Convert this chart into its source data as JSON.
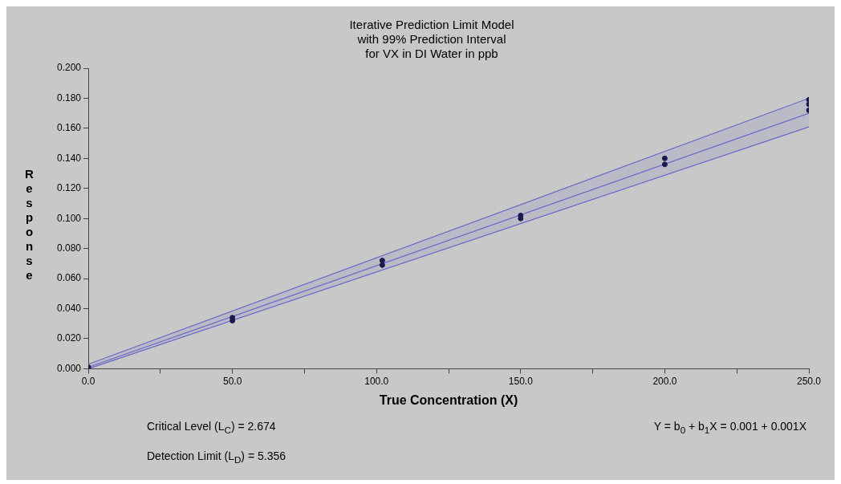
{
  "chart_data": {
    "type": "scatter",
    "title": "Iterative Prediction Limit Model\nwith 99% Prediction Interval\nfor VX in DI Water in ppb",
    "xlabel": "True Concentration (X)",
    "ylabel": "Response",
    "xlim": [
      0,
      250
    ],
    "xticks": [
      {
        "value": 0,
        "label": "0.0"
      },
      {
        "value": 25,
        "label": null
      },
      {
        "value": 50,
        "label": "50.0"
      },
      {
        "value": 75,
        "label": null
      },
      {
        "value": 100,
        "label": "100.0"
      },
      {
        "value": 125,
        "label": null
      },
      {
        "value": 150,
        "label": "150.0"
      },
      {
        "value": 175,
        "label": null
      },
      {
        "value": 200,
        "label": "200.0"
      },
      {
        "value": 225,
        "label": null
      },
      {
        "value": 250,
        "label": "250.0"
      }
    ],
    "ylim": [
      0,
      0.2
    ],
    "yticks": [
      {
        "value": 0,
        "label": "0.000"
      },
      {
        "value": 0.02,
        "label": "0.020"
      },
      {
        "value": 0.04,
        "label": "0.040"
      },
      {
        "value": 0.06,
        "label": "0.060"
      },
      {
        "value": 0.08,
        "label": "0.080"
      },
      {
        "value": 0.1,
        "label": "0.100"
      },
      {
        "value": 0.12,
        "label": "0.120"
      },
      {
        "value": 0.14,
        "label": "0.140"
      },
      {
        "value": 0.16,
        "label": "0.160"
      },
      {
        "value": 0.18,
        "label": "0.180"
      },
      {
        "value": 0.2,
        "label": "0.200"
      }
    ],
    "grid": false,
    "legend": false,
    "marker": "circle",
    "series": [
      {
        "type": "line",
        "marker": "none",
        "color": "#6666c8",
        "x": [
          0,
          250
        ],
        "values": [
          0.001,
          0.17
        ],
        "lower": [
          0.0,
          0.161
        ],
        "upper": [
          0.003,
          0.18
        ]
      },
      {
        "type": "line",
        "marker": "none",
        "color": "#6666c8",
        "x": [
          0,
          250
        ],
        "values": [
          0.003,
          0.18
        ]
      },
      {
        "type": "line",
        "marker": "none",
        "color": "#6666c8",
        "x": [
          0,
          250
        ],
        "values": [
          0.0,
          0.161
        ]
      },
      {
        "color": "#1a1a50",
        "x": [
          0,
          50,
          50,
          102,
          102,
          150,
          150,
          200,
          200,
          250,
          250,
          250
        ],
        "values": [
          0.001,
          0.032,
          0.034,
          0.069,
          0.072,
          0.1,
          0.102,
          0.136,
          0.14,
          0.172,
          0.176,
          0.179
        ]
      }
    ],
    "annotations": [
      "Critical Level (L$_{C}$) = 2.674",
      "Detection Limit (L$_{D}$) = 5.356",
      "Y = b$_{0}$ + b$_{1}$X = 0.001 + 0.001X"
    ]
  }
}
